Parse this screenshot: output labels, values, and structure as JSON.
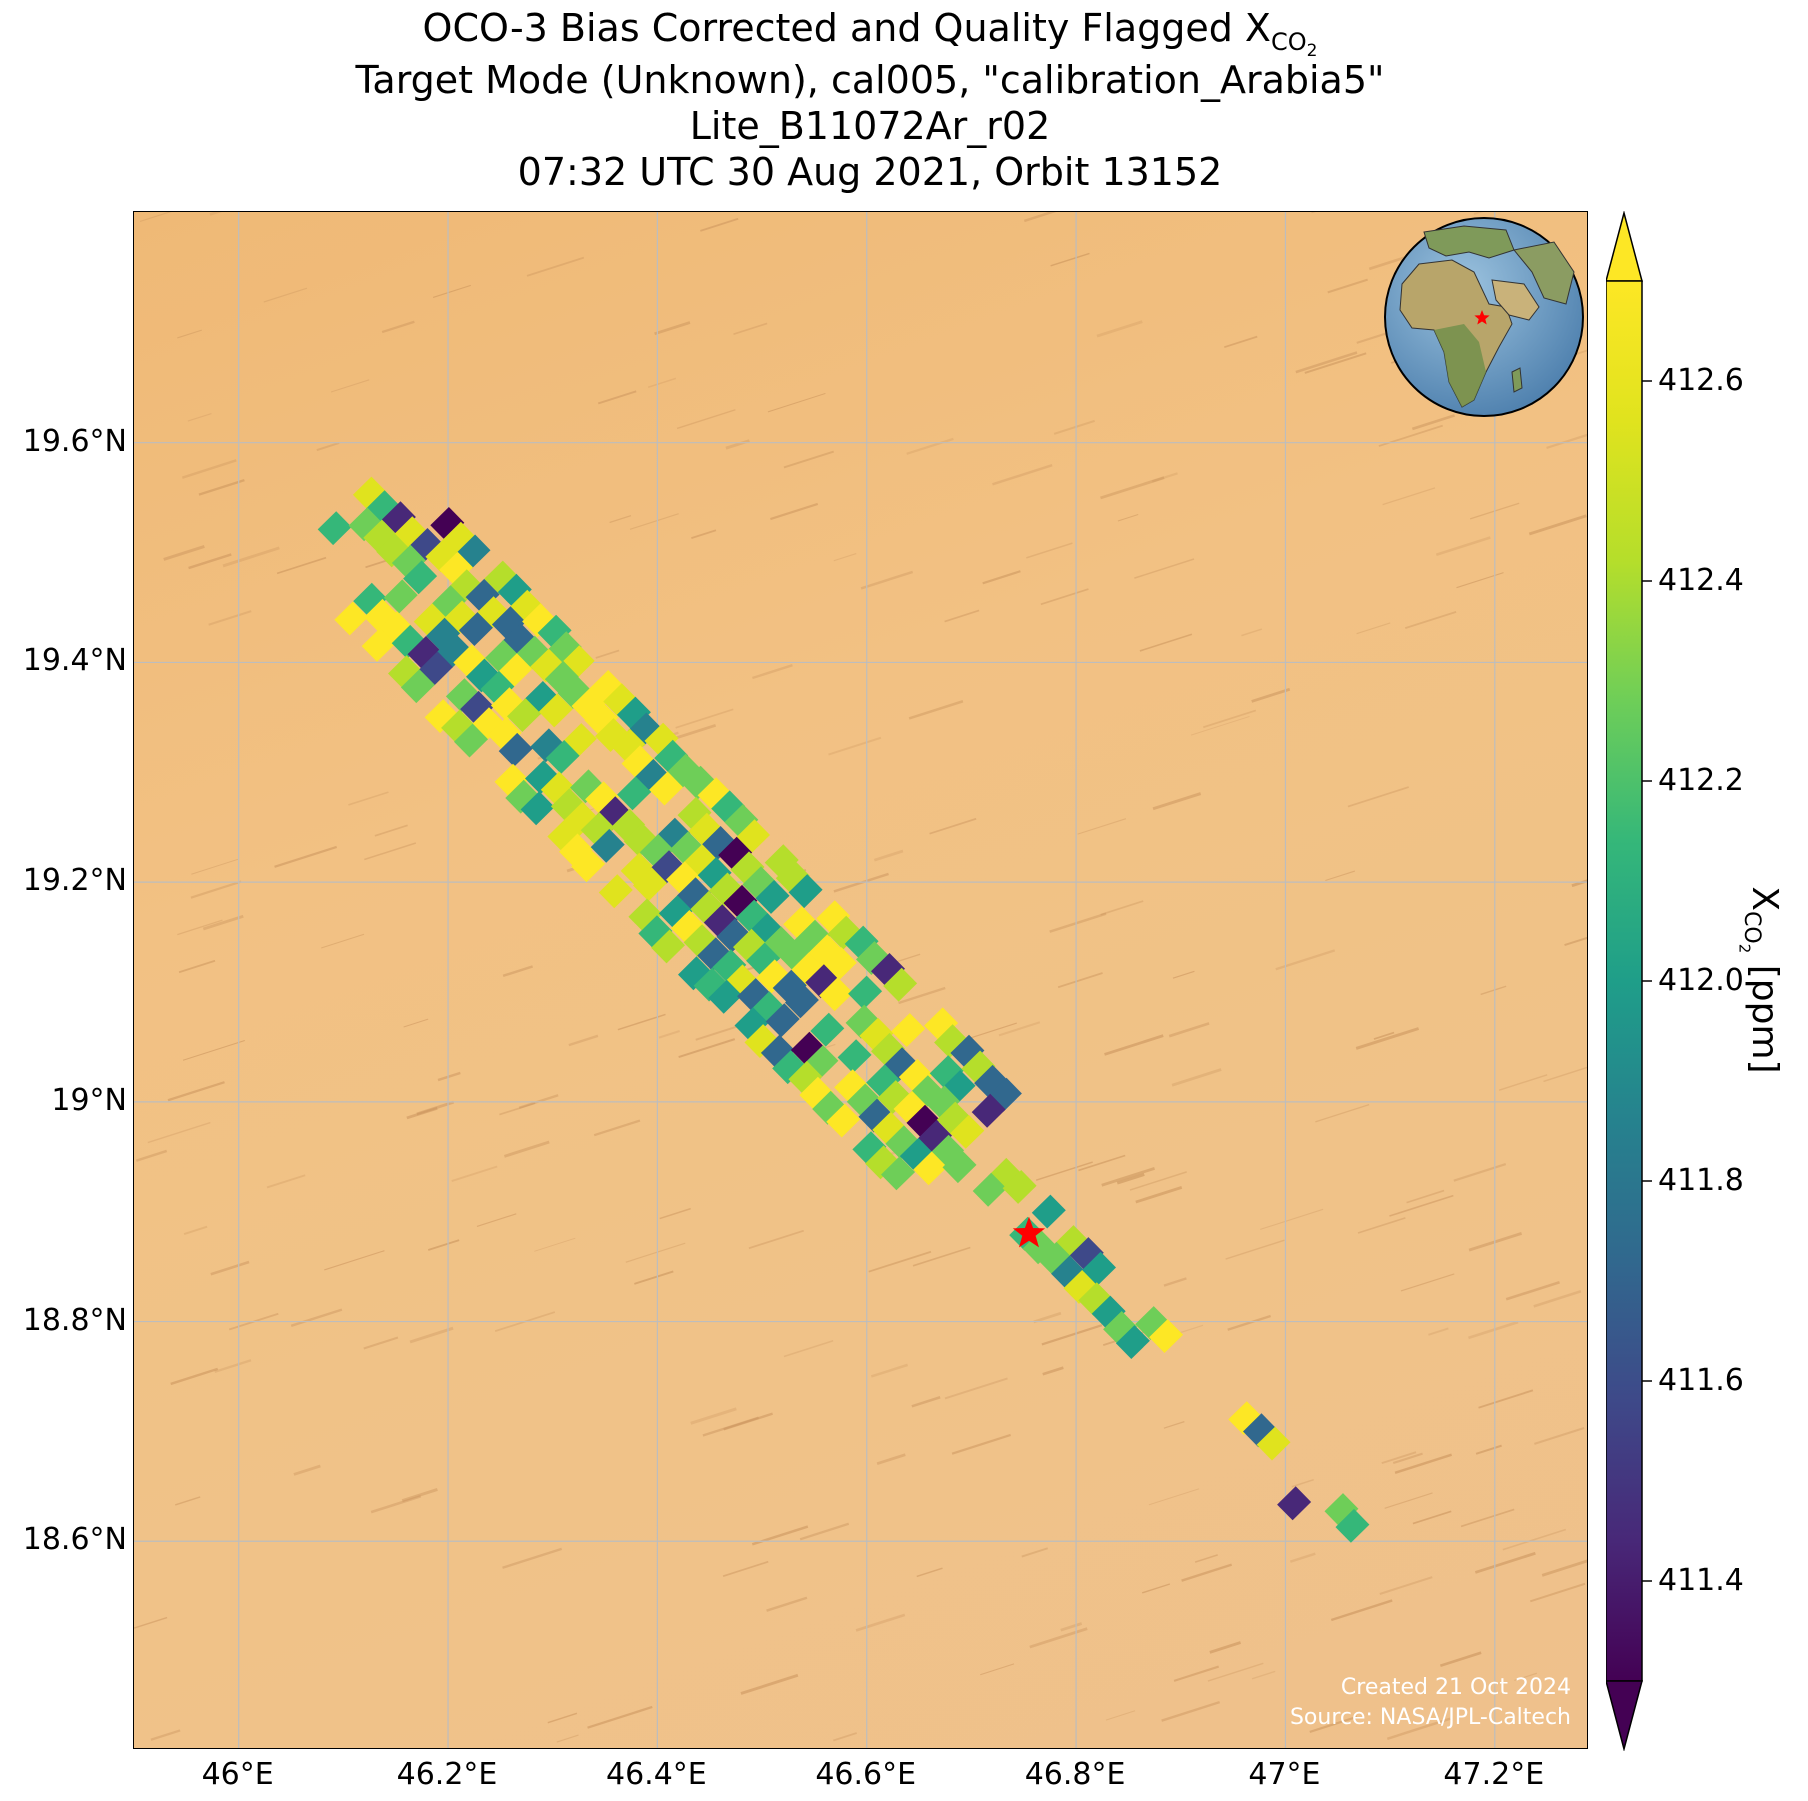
{
  "title": {
    "line1_prefix": "OCO-3 Bias Corrected and Quality Flagged X",
    "line1_sub": "CO",
    "line1_subsub": "2",
    "line2": "Target Mode (Unknown), cal005, \"calibration_Arabia5\"",
    "line3": "Lite_B11072Ar_r02",
    "line4": "07:32 UTC 30 Aug 2021, Orbit 13152"
  },
  "map": {
    "extent": {
      "lon_min": 45.9,
      "lon_max": 47.29,
      "lat_min": 18.41,
      "lat_max": 19.81
    },
    "lat_ticks": [
      "19.6°N",
      "19.4°N",
      "19.2°N",
      "19°N",
      "18.8°N",
      "18.6°N"
    ],
    "lon_ticks": [
      "46°E",
      "46.2°E",
      "46.4°E",
      "46.6°E",
      "46.8°E",
      "47°E",
      "47.2°E"
    ],
    "target": {
      "lon": 46.755,
      "lat": 18.88,
      "symbol": "star",
      "color": "#ff0000"
    },
    "inset": {
      "type": "globe",
      "symbol": "star",
      "color": "#ff0000"
    },
    "background": "desert-satellite",
    "gridlines": true
  },
  "swath": {
    "start": {
      "lon": 46.1,
      "lat": 19.53
    },
    "end": {
      "lon": 47.06,
      "lat": 18.6
    },
    "colormap": "viridis"
  },
  "credit": {
    "line1": "Created 21 Oct 2024",
    "line2": "Source: NASA/JPL-Caltech"
  },
  "colorbar": {
    "min": 411.3,
    "max": 412.7,
    "ticks": [
      "412.6",
      "412.4",
      "412.2",
      "412.0",
      "411.8",
      "411.6",
      "411.4"
    ],
    "tick_values": [
      412.6,
      412.4,
      412.2,
      412.0,
      411.8,
      411.6,
      411.4
    ],
    "extend": "both",
    "label_prefix": "X",
    "label_sub": "CO",
    "label_subsub": "2",
    "label_suffix": " [ppm]"
  }
}
